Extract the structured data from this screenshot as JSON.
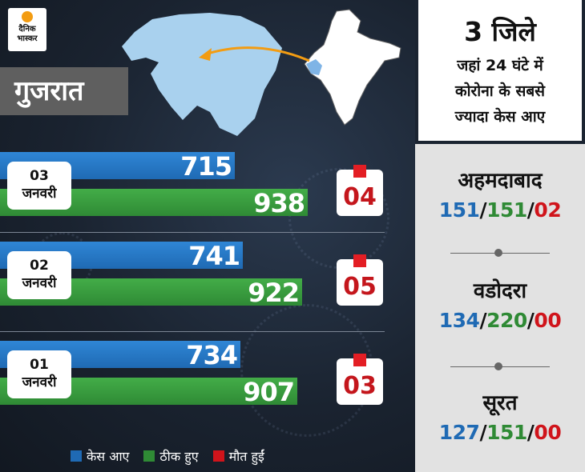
{
  "logo": {
    "line1": "दैनिक",
    "line2": "भास्कर"
  },
  "state_label": "गुजरात",
  "colors": {
    "cases": "#1f6ab4",
    "recovered": "#2f8a35",
    "deaths": "#d0141b",
    "background": "#1b2431",
    "panel": "#e2e2e2"
  },
  "chart_data": {
    "type": "bar",
    "categories": [
      "03 जनवरी",
      "02 जनवरी",
      "01 जनवरी"
    ],
    "category_lines": [
      [
        "03",
        "जनवरी"
      ],
      [
        "02",
        "जनवरी"
      ],
      [
        "01",
        "जनवरी"
      ]
    ],
    "series": [
      {
        "name": "केस आए",
        "values": [
          715,
          741,
          734
        ],
        "labels": [
          "715",
          "741",
          "734"
        ]
      },
      {
        "name": "ठीक हुए",
        "values": [
          938,
          922,
          907
        ],
        "labels": [
          "938",
          "922",
          "907"
        ]
      },
      {
        "name": "मौत हुईं",
        "values": [
          4,
          5,
          3
        ],
        "labels": [
          "04",
          "05",
          "03"
        ]
      }
    ],
    "legend": [
      "केस आए",
      "ठीक हुए",
      "मौत हुईं"
    ],
    "legend_position": "bottom"
  },
  "side_panel": {
    "title": "3 जिले",
    "subtitle_lines": [
      "जहां 24 घंटे में",
      "कोरोना के सबसे",
      "ज्यादा केस आए"
    ],
    "districts": [
      {
        "name": "अहमदाबाद",
        "cases": "151",
        "recovered": "151",
        "deaths": "02"
      },
      {
        "name": "वडोदरा",
        "cases": "134",
        "recovered": "220",
        "deaths": "00"
      },
      {
        "name": "सूरत",
        "cases": "127",
        "recovered": "151",
        "deaths": "00"
      }
    ],
    "separator": "/"
  }
}
